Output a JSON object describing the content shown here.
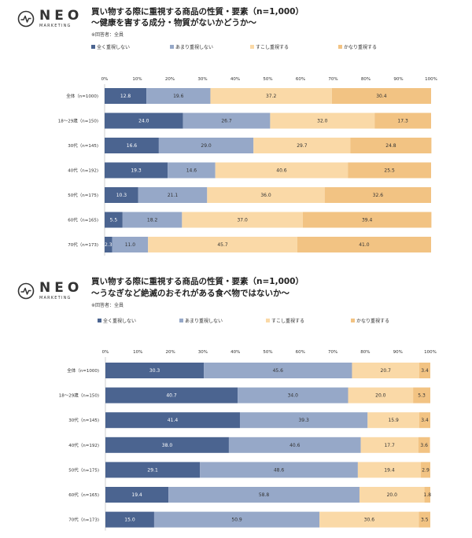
{
  "logo": {
    "name": "NEO",
    "sub": "MARKETING"
  },
  "colors": {
    "s1": "#4b6490",
    "s2": "#96a8c8",
    "s3": "#fad9a7",
    "s4": "#f2c383"
  },
  "chart_data": [
    {
      "type": "bar",
      "orientation": "horizontal",
      "stacked": true,
      "title_line1": "買い物する際に重視する商品の性質・要素（n=1,000）",
      "title_line2": "〜健康を害する成分・物質がないかどうか〜",
      "note": "※回答者：全員",
      "xlim": [
        0,
        100
      ],
      "ticks": [
        "0%",
        "10%",
        "20%",
        "30%",
        "40%",
        "50%",
        "60%",
        "70%",
        "80%",
        "90%",
        "100%"
      ],
      "legend_position": "top",
      "categories": [
        "全体（n=1000)",
        "18〜29歳（n=150)",
        "30代（n=145)",
        "40代（n=192)",
        "50代（n=175)",
        "60代（n=165)",
        "70代（n=173)"
      ],
      "series": [
        {
          "name": "全く重視しない",
          "values": [
            12.8,
            24.0,
            16.6,
            19.3,
            10.3,
            5.5,
            2.3
          ]
        },
        {
          "name": "あまり重視しない",
          "values": [
            19.6,
            26.7,
            29.0,
            14.6,
            21.1,
            18.2,
            11.0
          ]
        },
        {
          "name": "すこし重視する",
          "values": [
            37.2,
            32.0,
            29.7,
            40.6,
            36.0,
            37.0,
            45.7
          ]
        },
        {
          "name": "かなり重視する",
          "values": [
            30.4,
            17.3,
            24.8,
            25.5,
            32.6,
            39.4,
            41.0
          ]
        }
      ]
    },
    {
      "type": "bar",
      "orientation": "horizontal",
      "stacked": true,
      "title_line1": "買い物する際に重視する商品の性質・要素（n=1,000）",
      "title_line2": "〜うなぎなど絶滅のおそれがある食べ物ではないか〜",
      "note": "※回答者：全員",
      "xlim": [
        0,
        100
      ],
      "ticks": [
        "0%",
        "10%",
        "20%",
        "30%",
        "40%",
        "50%",
        "60%",
        "70%",
        "80%",
        "90%",
        "100%"
      ],
      "legend_position": "top",
      "categories": [
        "全体（n=1000)",
        "18〜29歳（n=150)",
        "30代（n=145)",
        "40代（n=192)",
        "50代（n=175)",
        "60代（n=165)",
        "70代（n=173)"
      ],
      "series": [
        {
          "name": "全く重視しない",
          "values": [
            30.3,
            40.7,
            41.4,
            38.0,
            29.1,
            19.4,
            15.0
          ]
        },
        {
          "name": "あまり重視しない",
          "values": [
            45.6,
            34.0,
            39.3,
            40.6,
            48.6,
            58.8,
            50.9
          ]
        },
        {
          "name": "すこし重視する",
          "values": [
            20.7,
            20.0,
            15.9,
            17.7,
            19.4,
            20.0,
            30.6
          ]
        },
        {
          "name": "かなり重視する",
          "values": [
            3.4,
            5.3,
            3.4,
            3.6,
            2.9,
            1.8,
            3.5
          ]
        }
      ]
    }
  ]
}
